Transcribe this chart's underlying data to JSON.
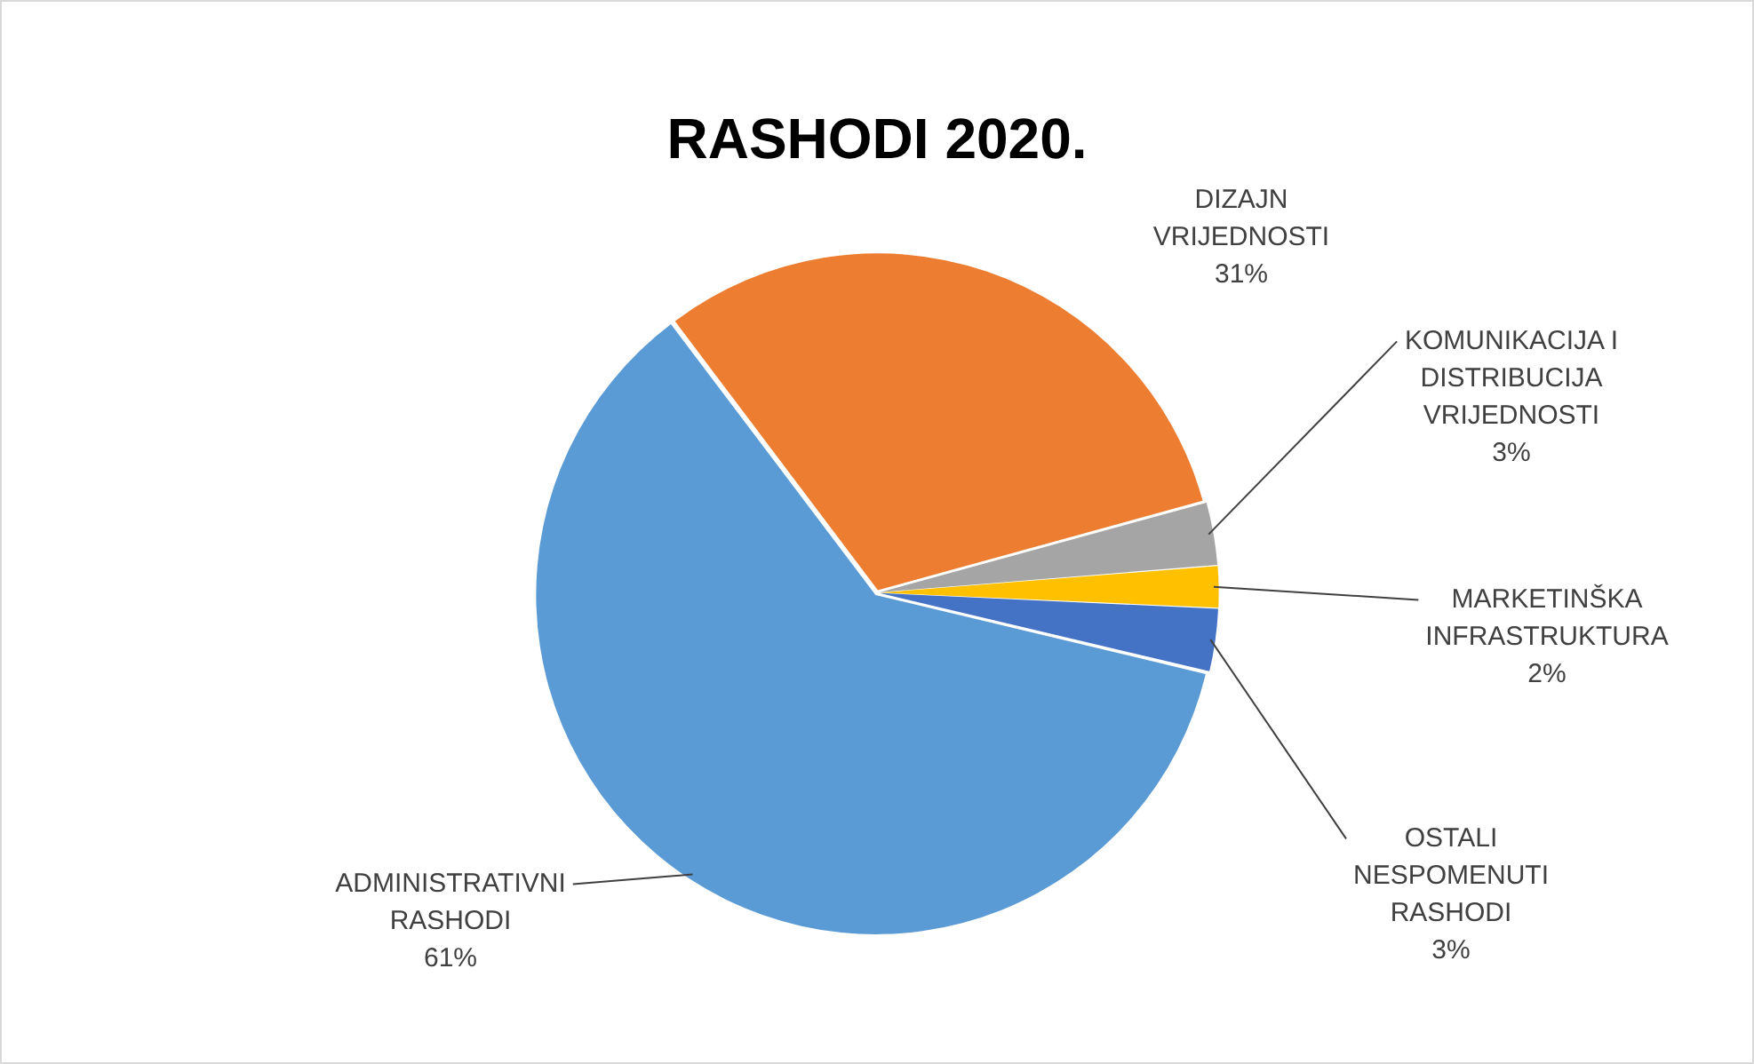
{
  "chart_data": {
    "type": "pie",
    "title": "RASHODI 2020.",
    "categories": [
      "DIZAJN VRIJEDNOSTI",
      "KOMUNIKACIJA I DISTRIBUCIJA VRIJEDNOSTI",
      "MARKETINŠKA INFRASTRUKTURA",
      "OSTALI NESPOMENUTI RASHODI",
      "ADMINISTRATIVNI RASHODI"
    ],
    "values": [
      31,
      3,
      2,
      3,
      61
    ],
    "value_labels": [
      "31%",
      "3%",
      "2%",
      "3%",
      "61%"
    ],
    "colors": [
      "#ed7d31",
      "#a5a5a5",
      "#ffc000",
      "#4472c4",
      "#5b9bd5"
    ],
    "legend": false
  }
}
